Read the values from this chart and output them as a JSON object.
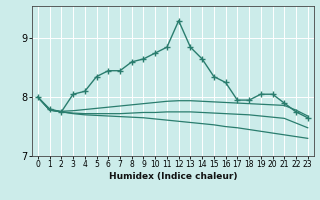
{
  "xlabel": "Humidex (Indice chaleur)",
  "ylabel": "",
  "background_color": "#ccecea",
  "grid_color": "#ffffff",
  "line_color": "#2a7d6e",
  "xlim": [
    -0.5,
    23.5
  ],
  "ylim": [
    7.0,
    9.55
  ],
  "yticks": [
    7,
    8,
    9
  ],
  "xticks": [
    0,
    1,
    2,
    3,
    4,
    5,
    6,
    7,
    8,
    9,
    10,
    11,
    12,
    13,
    14,
    15,
    16,
    17,
    18,
    19,
    20,
    21,
    22,
    23
  ],
  "series": [
    {
      "x": [
        0,
        1,
        2,
        3,
        4,
        5,
        6,
        7,
        8,
        9,
        10,
        11,
        12,
        13,
        14,
        15,
        16,
        17,
        18,
        19,
        20,
        21,
        22,
        23
      ],
      "y": [
        8.0,
        7.8,
        7.75,
        8.05,
        8.1,
        8.35,
        8.45,
        8.45,
        8.6,
        8.65,
        8.75,
        8.85,
        9.3,
        8.85,
        8.65,
        8.35,
        8.25,
        7.95,
        7.95,
        8.05,
        8.05,
        7.9,
        7.75,
        7.65
      ],
      "has_markers": true,
      "marker": "+",
      "linewidth": 1.0,
      "markersize": 4
    },
    {
      "x": [
        0,
        1,
        2,
        3,
        4,
        5,
        6,
        7,
        8,
        9,
        10,
        11,
        12,
        13,
        14,
        15,
        16,
        17,
        18,
        19,
        20,
        21,
        22,
        23
      ],
      "y": [
        8.0,
        7.78,
        7.76,
        7.77,
        7.79,
        7.81,
        7.83,
        7.85,
        7.87,
        7.89,
        7.91,
        7.93,
        7.94,
        7.94,
        7.93,
        7.92,
        7.91,
        7.9,
        7.89,
        7.88,
        7.87,
        7.86,
        7.78,
        7.68
      ],
      "has_markers": false,
      "linewidth": 0.9
    },
    {
      "x": [
        0,
        1,
        2,
        3,
        4,
        5,
        6,
        7,
        8,
        9,
        10,
        11,
        12,
        13,
        14,
        15,
        16,
        17,
        18,
        19,
        20,
        21,
        22,
        23
      ],
      "y": [
        8.0,
        7.78,
        7.75,
        7.73,
        7.72,
        7.72,
        7.72,
        7.72,
        7.73,
        7.74,
        7.74,
        7.75,
        7.75,
        7.75,
        7.74,
        7.73,
        7.72,
        7.71,
        7.7,
        7.68,
        7.66,
        7.64,
        7.56,
        7.48
      ],
      "has_markers": false,
      "linewidth": 0.9
    },
    {
      "x": [
        0,
        1,
        2,
        3,
        4,
        5,
        6,
        7,
        8,
        9,
        10,
        11,
        12,
        13,
        14,
        15,
        16,
        17,
        18,
        19,
        20,
        21,
        22,
        23
      ],
      "y": [
        8.0,
        7.78,
        7.75,
        7.72,
        7.7,
        7.69,
        7.68,
        7.67,
        7.66,
        7.65,
        7.63,
        7.61,
        7.59,
        7.57,
        7.55,
        7.53,
        7.5,
        7.48,
        7.45,
        7.42,
        7.39,
        7.36,
        7.33,
        7.3
      ],
      "has_markers": false,
      "linewidth": 0.9
    }
  ]
}
